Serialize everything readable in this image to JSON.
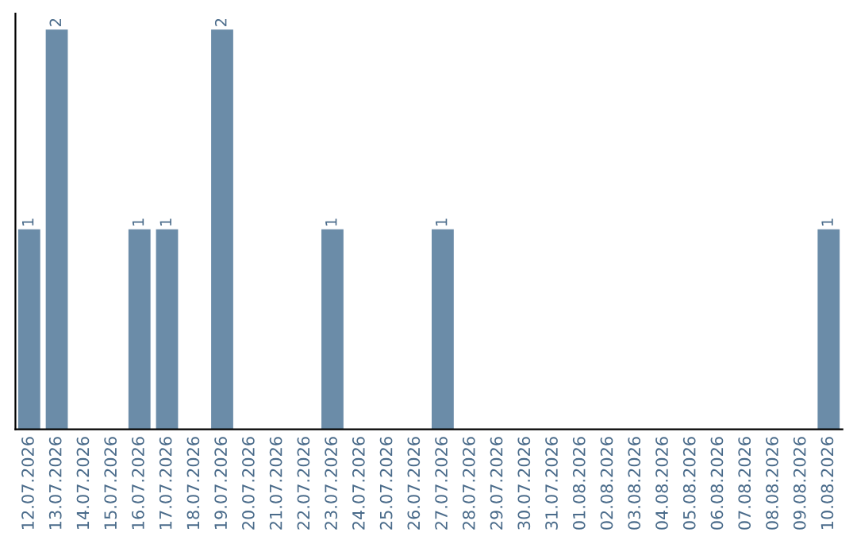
{
  "chart_data": {
    "type": "bar",
    "categories": [
      "12.07.2026",
      "13.07.2026",
      "14.07.2026",
      "15.07.2026",
      "16.07.2026",
      "17.07.2026",
      "18.07.2026",
      "19.07.2026",
      "20.07.2026",
      "21.07.2026",
      "22.07.2026",
      "23.07.2026",
      "24.07.2026",
      "25.07.2026",
      "26.07.2026",
      "27.07.2026",
      "28.07.2026",
      "29.07.2026",
      "30.07.2026",
      "31.07.2026",
      "01.08.2026",
      "02.08.2026",
      "03.08.2026",
      "04.08.2026",
      "05.08.2026",
      "06.08.2026",
      "07.08.2026",
      "08.08.2026",
      "09.08.2026",
      "10.08.2026"
    ],
    "values": [
      1,
      2,
      0,
      0,
      1,
      1,
      0,
      2,
      0,
      0,
      0,
      1,
      0,
      0,
      0,
      1,
      0,
      0,
      0,
      0,
      0,
      0,
      0,
      0,
      0,
      0,
      0,
      0,
      0,
      1
    ],
    "value_labels": [
      "1",
      "2",
      null,
      null,
      "1",
      "1",
      null,
      "2",
      null,
      null,
      null,
      "1",
      null,
      null,
      null,
      "1",
      null,
      null,
      null,
      null,
      null,
      null,
      null,
      null,
      null,
      null,
      null,
      null,
      null,
      "1"
    ],
    "color": "#6b8ca8",
    "grid": false,
    "legend": false
  }
}
